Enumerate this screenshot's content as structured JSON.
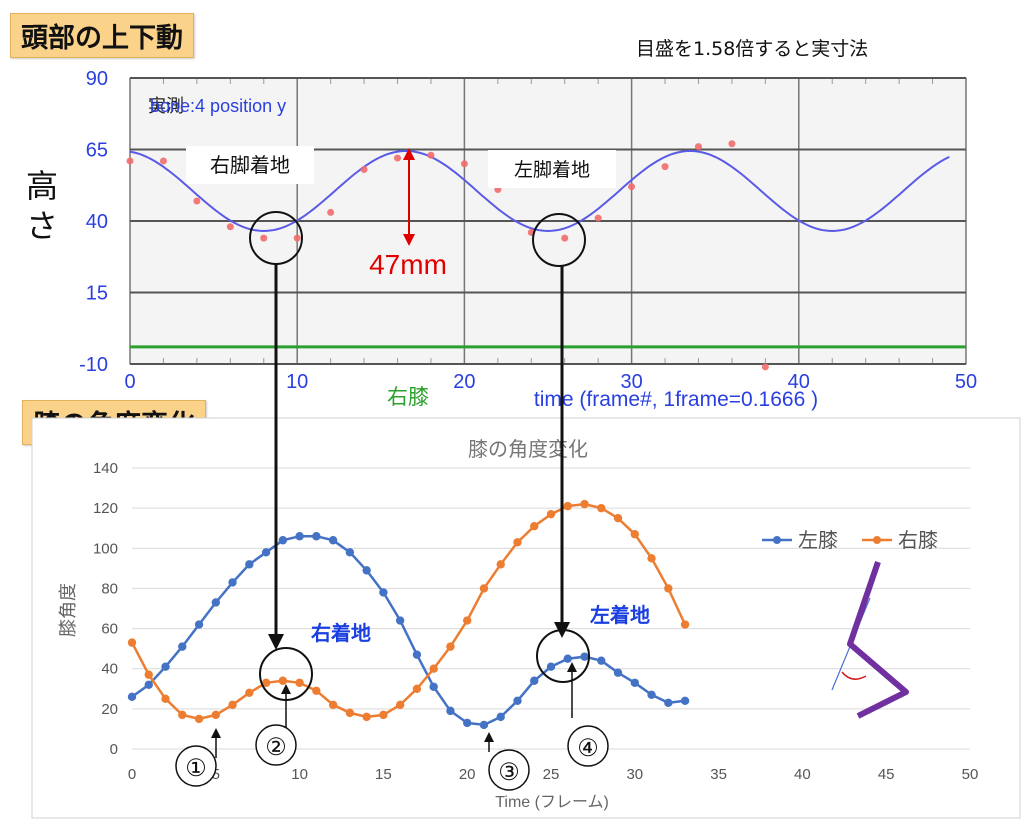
{
  "top_panel": {
    "tag": "頭部の上下動",
    "scale_note": "目盛を1.58倍すると実寸法",
    "y_axis_title": "高さ",
    "bg_text_1": "実測",
    "bg_text_2": "bone:4 position y",
    "right_landing": "右脚着地",
    "left_landing": "左脚着地",
    "amplitude_label": "47mm",
    "green_label": "右膝",
    "x_axis_title": "time (frame#, 1frame=0.1666 )"
  },
  "bottom_panel": {
    "tag": "膝の角度変化",
    "right_landing_note": "右着地",
    "left_landing_note": "左着地",
    "markers": [
      "①",
      "②",
      "③",
      "④"
    ]
  },
  "colors": {
    "left_knee": "#4472c4",
    "right_knee": "#ed7d31",
    "head_wave": "#5a5ae6",
    "measured": "#f26b6b",
    "tag_bg": "#fbd28a",
    "annotation_red": "#e00000",
    "note_blue": "#1a3fe0",
    "green": "#2ca02c"
  },
  "chart_data": [
    {
      "type": "line",
      "title": "",
      "xlabel": "time (frame#, 1frame=0.1666 )",
      "ylabel": "高さ",
      "xlim": [
        0,
        50
      ],
      "ylim": [
        -10,
        90
      ],
      "xticks": [
        0,
        10,
        20,
        30,
        40,
        50
      ],
      "yticks": [
        -10,
        15,
        40,
        65,
        90
      ],
      "grid": true,
      "series": [
        {
          "name": "bone:4 position y",
          "kind": "sine",
          "mean": 50.5,
          "amplitude": 14,
          "period": 17,
          "peak_at": 16.5,
          "x_range": [
            0,
            49
          ]
        },
        {
          "name": "実測",
          "kind": "points",
          "x": [
            0,
            2,
            4,
            6,
            8,
            10,
            12,
            14,
            16,
            18,
            20,
            22,
            24,
            26,
            28,
            30,
            32,
            34,
            36,
            38
          ],
          "y": [
            61,
            61,
            47,
            38,
            34,
            34,
            43,
            58,
            62,
            63,
            60,
            51,
            36,
            34,
            41,
            52,
            59,
            66,
            67,
            -11
          ]
        },
        {
          "name": "右膝",
          "kind": "hline",
          "y": -4
        }
      ]
    },
    {
      "type": "line",
      "title": "膝の角度変化",
      "xlabel": "Time (フレーム)",
      "ylabel": "膝角度",
      "xlim": [
        0,
        50
      ],
      "ylim": [
        0,
        140
      ],
      "xticks": [
        0,
        5,
        10,
        15,
        20,
        25,
        30,
        35,
        40,
        45,
        50
      ],
      "yticks": [
        0,
        20,
        40,
        60,
        80,
        100,
        120,
        140
      ],
      "legend": "right",
      "categories": [
        0,
        1,
        2,
        3,
        4,
        5,
        6,
        7,
        8,
        9,
        10,
        11,
        12,
        13,
        14,
        15,
        16,
        17,
        18,
        19,
        20,
        21,
        22,
        23,
        24,
        25,
        26,
        27,
        28,
        29,
        30,
        31,
        32,
        33
      ],
      "series": [
        {
          "name": "左膝",
          "values": [
            26,
            32,
            41,
            51,
            62,
            73,
            83,
            92,
            98,
            104,
            106,
            106,
            104,
            98,
            89,
            78,
            64,
            47,
            31,
            19,
            13,
            12,
            16,
            24,
            34,
            41,
            45,
            46,
            44,
            38,
            33,
            27,
            23,
            24
          ]
        },
        {
          "name": "右膝",
          "values": [
            53,
            37,
            25,
            17,
            15,
            17,
            22,
            28,
            33,
            34,
            33,
            29,
            22,
            18,
            16,
            17,
            22,
            30,
            40,
            51,
            64,
            80,
            92,
            103,
            111,
            117,
            121,
            122,
            120,
            115,
            107,
            95,
            80,
            62
          ]
        }
      ]
    }
  ]
}
